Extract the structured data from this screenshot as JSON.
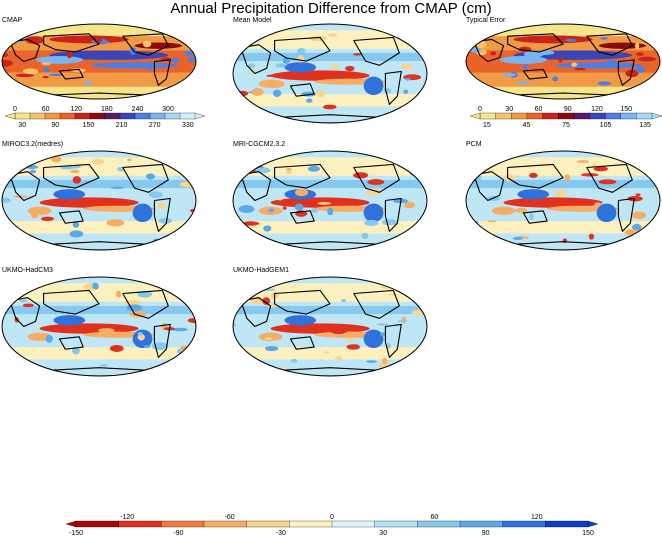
{
  "title": "Annual Precipitation Difference from CMAP (cm)",
  "panels": [
    {
      "label": "CMAP",
      "kind": "cmap"
    },
    {
      "label": "Mean Model",
      "kind": "diff"
    },
    {
      "label": "Typical Error",
      "kind": "err"
    },
    {
      "label": "MIROC3.2(medres)",
      "kind": "diff"
    },
    {
      "label": "MRI-CGCM2.3.2",
      "kind": "diff"
    },
    {
      "label": "PCM",
      "kind": "diff"
    },
    {
      "label": "UKMO-HadCM3",
      "kind": "diff"
    },
    {
      "label": "UKMO-HadGEM1",
      "kind": "diff"
    }
  ],
  "colorbars": {
    "cmap": {
      "top_ticks": [
        "0",
        "60",
        "120",
        "180",
        "240",
        "300"
      ],
      "bottom_ticks": [
        "30",
        "90",
        "150",
        "210",
        "270",
        "330"
      ],
      "colors": [
        "#f7e58c",
        "#f4c46a",
        "#f09a45",
        "#e8642a",
        "#c8241a",
        "#8a0c10",
        "#5a1a6a",
        "#3a46b8",
        "#4f7ee0",
        "#78b4f0",
        "#a8d6f4",
        "#d2eef8"
      ]
    },
    "err": {
      "top_ticks": [
        "0",
        "30",
        "60",
        "90",
        "120",
        "150"
      ],
      "bottom_ticks": [
        "15",
        "45",
        "75",
        "105",
        "135"
      ],
      "colors": [
        "#f7e58c",
        "#f4c46a",
        "#f09a45",
        "#e8642a",
        "#c8241a",
        "#8a0c10",
        "#5a1a6a",
        "#3a46b8",
        "#4f7ee0",
        "#78b4f0",
        "#a8d6f4"
      ]
    },
    "diff": {
      "top_ticks": [
        "-120",
        "-60",
        "0",
        "60",
        "120"
      ],
      "bottom_ticks": [
        "-150",
        "-90",
        "-30",
        "30",
        "90",
        "150"
      ],
      "colors": [
        "#a80a0a",
        "#e0301e",
        "#f07a3c",
        "#f5ad64",
        "#f8d48c",
        "#fbf0be",
        "#dff4f6",
        "#b4e4f4",
        "#86c8ee",
        "#5aa8e8",
        "#2f72dc",
        "#0a3cc8"
      ]
    }
  },
  "colors": {
    "ocean_neutral": "#bfe6f4",
    "land_neutral": "#fbf0be",
    "coast": "#000000"
  }
}
